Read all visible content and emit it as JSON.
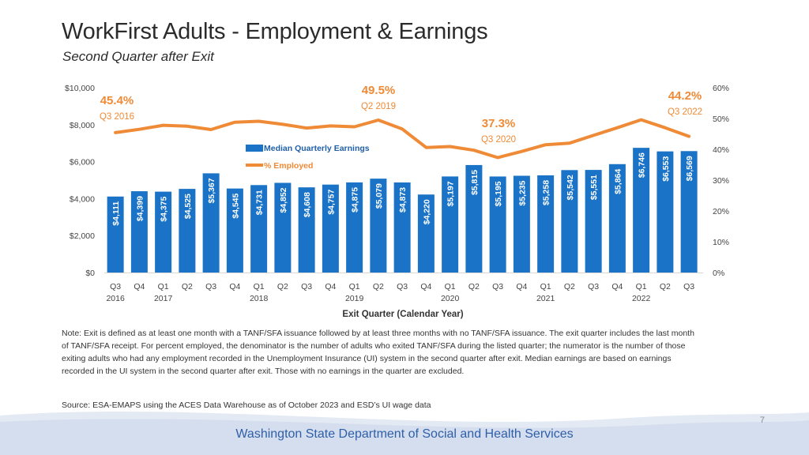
{
  "title": "WorkFirst Adults - Employment & Earnings",
  "subtitle": "Second Quarter after Exit",
  "chart_data": {
    "type": "bar",
    "categories": [
      "Q3",
      "Q4",
      "Q1",
      "Q2",
      "Q3",
      "Q4",
      "Q1",
      "Q2",
      "Q3",
      "Q4",
      "Q1",
      "Q2",
      "Q3",
      "Q4",
      "Q1",
      "Q2",
      "Q3",
      "Q4",
      "Q1",
      "Q2",
      "Q3",
      "Q4",
      "Q1",
      "Q2",
      "Q3"
    ],
    "years": [
      {
        "label": "2016",
        "index": 0
      },
      {
        "label": "2017",
        "index": 2
      },
      {
        "label": "2018",
        "index": 6
      },
      {
        "label": "2019",
        "index": 10
      },
      {
        "label": "2020",
        "index": 14
      },
      {
        "label": "2021",
        "index": 18
      },
      {
        "label": "2022",
        "index": 22
      }
    ],
    "series": [
      {
        "name": "Median Quarterly Earnings",
        "type": "bar",
        "axis": "left",
        "color": "#1a73c6",
        "values": [
          4111,
          4399,
          4375,
          4525,
          5367,
          4545,
          4731,
          4852,
          4608,
          4757,
          4875,
          5079,
          4873,
          4220,
          5197,
          5815,
          5195,
          5235,
          5258,
          5542,
          5551,
          5864,
          6746,
          6553,
          6569
        ],
        "labels": [
          "$4,111",
          "$4,399",
          "$4,375",
          "$4,525",
          "$5,367",
          "$4,545",
          "$4,731",
          "$4,852",
          "$4,608",
          "$4,757",
          "$4,875",
          "$5,079",
          "$4,873",
          "$4,220",
          "$5,197",
          "$5,815",
          "$5,195",
          "$5,235",
          "$5,258",
          "$5,542",
          "$5,551",
          "$5,864",
          "$6,746",
          "$6,553",
          "$6,569"
        ]
      },
      {
        "name": "% Employed",
        "type": "line",
        "axis": "right",
        "color": "#ef8a36",
        "values": [
          45.4,
          46.5,
          47.8,
          47.5,
          46.4,
          48.8,
          49.1,
          48.1,
          46.9,
          47.6,
          47.3,
          49.5,
          46.6,
          40.6,
          40.9,
          39.7,
          37.3,
          39.3,
          41.5,
          42.0,
          44.5,
          47.0,
          49.6,
          47.0,
          44.2
        ]
      }
    ],
    "left_axis": {
      "min": 0,
      "max": 10000,
      "ticks": [
        0,
        2000,
        4000,
        6000,
        8000,
        10000
      ],
      "tick_labels": [
        "$0",
        "$2,000",
        "$4,000",
        "$6,000",
        "$8,000",
        "$10,000"
      ]
    },
    "right_axis": {
      "min": 0,
      "max": 60,
      "ticks": [
        0,
        10,
        20,
        30,
        40,
        50,
        60
      ],
      "tick_labels": [
        "0%",
        "10%",
        "20%",
        "30%",
        "40%",
        "50%",
        "60%"
      ]
    },
    "xlabel": "Exit Quarter (Calendar Year)",
    "annotations": [
      {
        "index": 0,
        "value": "45.4%",
        "period": "Q3 2016"
      },
      {
        "index": 11,
        "value": "49.5%",
        "period": "Q2 2019"
      },
      {
        "index": 16,
        "value": "37.3%",
        "period": "Q3 2020"
      },
      {
        "index": 24,
        "value": "44.2%",
        "period": "Q3 2022"
      }
    ]
  },
  "note": "Note: Exit is defined as at least one month with a TANF/SFA issuance followed by at least three months with no TANF/SFA issuance. The exit quarter includes the last month of TANF/SFA receipt. For percent employed, the denominator is the number of adults who exited TANF/SFA during the listed quarter; the numerator is the number of those exiting adults who had any employment recorded in the Unemployment Insurance (UI) system in the second quarter after exit. Median earnings are based on earnings recorded in the UI system in the second quarter after exit. Those with no earnings in the quarter are excluded.",
  "source": "Source: ESA-EMAPS using the ACES Data Warehouse as of October 2023 and ESD’s UI wage data",
  "page_number": "7",
  "footer": "Washington State Department of Social and Health Services"
}
